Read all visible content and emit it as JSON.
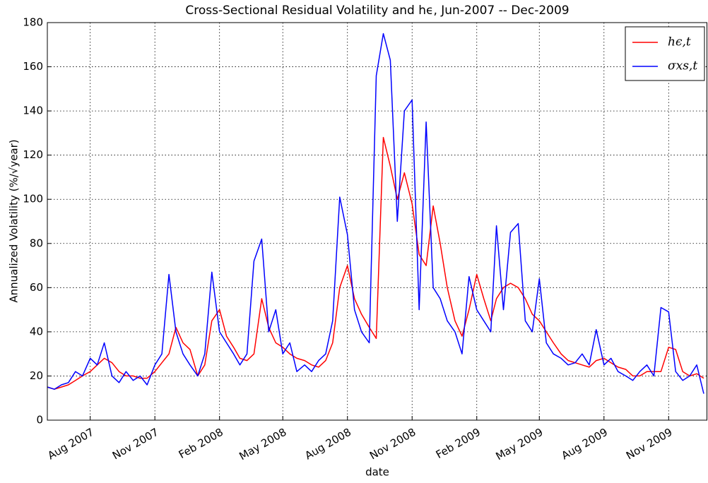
{
  "chart_data": {
    "type": "line",
    "title": "Cross-Sectional Residual Volatility and hϵ, Jun-2007 -- Dec-2009",
    "x_label": "date",
    "y_label": "Annualized Volatility (%/√year)",
    "x": [
      "2007-06-01",
      "2007-06-11",
      "2007-06-21",
      "2007-07-01",
      "2007-07-11",
      "2007-07-21",
      "2007-08-01",
      "2007-08-11",
      "2007-08-21",
      "2007-09-01",
      "2007-09-11",
      "2007-09-21",
      "2007-10-01",
      "2007-10-11",
      "2007-10-21",
      "2007-11-01",
      "2007-11-11",
      "2007-11-21",
      "2007-12-01",
      "2007-12-11",
      "2007-12-21",
      "2008-01-01",
      "2008-01-11",
      "2008-01-21",
      "2008-02-01",
      "2008-02-11",
      "2008-02-21",
      "2008-03-01",
      "2008-03-11",
      "2008-03-21",
      "2008-04-01",
      "2008-04-11",
      "2008-04-21",
      "2008-05-01",
      "2008-05-11",
      "2008-05-21",
      "2008-06-01",
      "2008-06-11",
      "2008-06-21",
      "2008-07-01",
      "2008-07-11",
      "2008-07-21",
      "2008-08-01",
      "2008-08-11",
      "2008-08-21",
      "2008-09-01",
      "2008-09-11",
      "2008-09-21",
      "2008-10-01",
      "2008-10-11",
      "2008-10-21",
      "2008-11-01",
      "2008-11-11",
      "2008-11-21",
      "2008-12-01",
      "2008-12-11",
      "2008-12-21",
      "2009-01-01",
      "2009-01-11",
      "2009-01-21",
      "2009-02-01",
      "2009-02-11",
      "2009-02-21",
      "2009-03-01",
      "2009-03-11",
      "2009-03-21",
      "2009-04-01",
      "2009-04-11",
      "2009-04-21",
      "2009-05-01",
      "2009-05-11",
      "2009-05-21",
      "2009-06-01",
      "2009-06-11",
      "2009-06-21",
      "2009-07-01",
      "2009-07-11",
      "2009-07-21",
      "2009-08-01",
      "2009-08-11",
      "2009-08-21",
      "2009-09-01",
      "2009-09-11",
      "2009-09-21",
      "2009-10-01",
      "2009-10-11",
      "2009-10-21",
      "2009-11-01",
      "2009-11-11",
      "2009-11-21",
      "2009-12-01",
      "2009-12-11",
      "2009-12-21"
    ],
    "series": [
      {
        "name": "hϵ,t",
        "color": "#ff0000",
        "values": [
          15,
          14,
          15,
          16,
          18,
          20,
          22,
          25,
          28,
          26,
          22,
          20,
          20,
          19,
          19,
          22,
          26,
          30,
          42,
          35,
          32,
          20,
          25,
          45,
          50,
          38,
          33,
          28,
          27,
          30,
          55,
          42,
          35,
          33,
          30,
          28,
          27,
          25,
          24,
          27,
          35,
          60,
          70,
          55,
          48,
          42,
          37,
          128,
          115,
          100,
          112,
          98,
          75,
          70,
          97,
          80,
          60,
          45,
          38,
          50,
          66,
          55,
          45,
          55,
          60,
          62,
          60,
          55,
          48,
          45,
          40,
          35,
          30,
          27,
          26,
          25,
          24,
          27,
          28,
          26,
          24,
          23,
          20,
          20,
          22,
          22,
          22,
          33,
          32,
          22,
          20,
          21,
          19
        ]
      },
      {
        "name": "σxs,t",
        "color": "#0000ff",
        "values": [
          15,
          14,
          16,
          17,
          22,
          20,
          28,
          25,
          35,
          20,
          17,
          22,
          18,
          20,
          16,
          25,
          30,
          66,
          40,
          30,
          25,
          20,
          30,
          67,
          40,
          35,
          30,
          25,
          30,
          72,
          82,
          40,
          50,
          30,
          35,
          22,
          25,
          22,
          27,
          30,
          45,
          101,
          84,
          50,
          40,
          35,
          156,
          175,
          163,
          90,
          140,
          145,
          50,
          135,
          60,
          55,
          45,
          40,
          30,
          65,
          50,
          45,
          40,
          88,
          50,
          85,
          89,
          45,
          40,
          64,
          35,
          30,
          28,
          25,
          26,
          30,
          25,
          41,
          25,
          28,
          22,
          20,
          18,
          22,
          25,
          20,
          51,
          49,
          22,
          18,
          20,
          25,
          12
        ]
      }
    ],
    "xlim": [
      "2007-06-01",
      "2009-12-26"
    ],
    "xticks": [
      {
        "value": "2007-08-01",
        "label": "Aug 2007"
      },
      {
        "value": "2007-11-01",
        "label": "Nov 2007"
      },
      {
        "value": "2008-02-01",
        "label": "Feb 2008"
      },
      {
        "value": "2008-05-01",
        "label": "May 2008"
      },
      {
        "value": "2008-08-01",
        "label": "Aug 2008"
      },
      {
        "value": "2008-11-01",
        "label": "Nov 2008"
      },
      {
        "value": "2009-02-01",
        "label": "Feb 2009"
      },
      {
        "value": "2009-05-01",
        "label": "May 2009"
      },
      {
        "value": "2009-08-01",
        "label": "Aug 2009"
      },
      {
        "value": "2009-11-01",
        "label": "Nov 2009"
      }
    ],
    "ylim": [
      0,
      180
    ],
    "yticks": [
      0,
      20,
      40,
      60,
      80,
      100,
      120,
      140,
      160,
      180
    ],
    "grid": true,
    "legend": "upper right"
  }
}
